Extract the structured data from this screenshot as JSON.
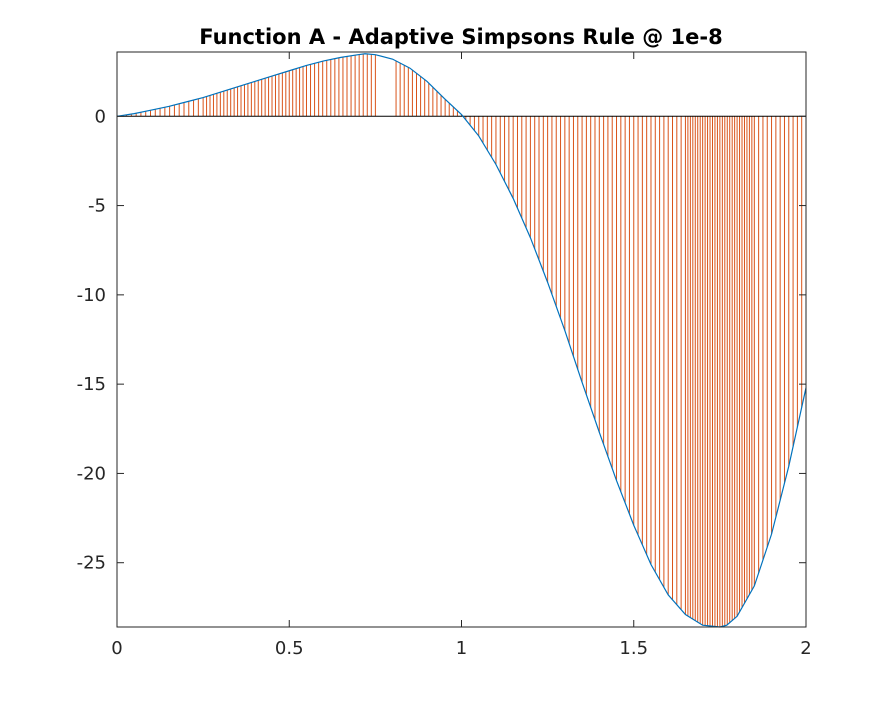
{
  "chart_data": {
    "type": "line",
    "title": "Function A - Adaptive Simpsons Rule @ 1e-8",
    "xlabel": "",
    "ylabel": "",
    "xlim": [
      0,
      2
    ],
    "ylim": [
      -28.6,
      3.6
    ],
    "xticks": [
      0,
      0.5,
      1,
      1.5,
      2
    ],
    "xtick_labels": [
      "0",
      "0.5",
      "1",
      "1.5",
      "2"
    ],
    "yticks": [
      -25,
      -20,
      -15,
      -10,
      -5,
      0
    ],
    "ytick_labels": [
      "-25",
      "-20",
      "-15",
      "-10",
      "-5",
      "0"
    ],
    "grid": false,
    "legend": "none",
    "series": [
      {
        "kind": "line",
        "color": "#0072BD",
        "x": [
          0,
          0.05,
          0.1,
          0.15,
          0.2,
          0.25,
          0.3,
          0.35,
          0.4,
          0.45,
          0.5,
          0.55,
          0.6,
          0.65,
          0.7,
          0.72,
          0.75,
          0.8,
          0.85,
          0.9,
          0.95,
          1.0,
          1.05,
          1.1,
          1.15,
          1.2,
          1.25,
          1.3,
          1.35,
          1.4,
          1.45,
          1.5,
          1.55,
          1.6,
          1.65,
          1.7,
          1.75,
          1.77,
          1.8,
          1.85,
          1.9,
          1.95,
          2.0
        ],
        "y": [
          0.0,
          0.15,
          0.35,
          0.55,
          0.8,
          1.05,
          1.35,
          1.65,
          1.95,
          2.25,
          2.55,
          2.85,
          3.1,
          3.3,
          3.45,
          3.5,
          3.45,
          3.2,
          2.7,
          1.95,
          1.0,
          0.1,
          -1.1,
          -2.7,
          -4.6,
          -6.8,
          -9.3,
          -12.0,
          -14.9,
          -17.7,
          -20.4,
          -22.9,
          -25.1,
          -26.8,
          -27.9,
          -28.5,
          -28.6,
          -28.5,
          -28.0,
          -26.3,
          -23.4,
          -19.6,
          -15.2
        ]
      },
      {
        "kind": "stem",
        "color": "#D95319",
        "baseline": 0,
        "segments": [
          {
            "x0": 0,
            "x1": 0.25,
            "count": 18
          },
          {
            "x0": 0.25,
            "x1": 0.55,
            "count": 30
          },
          {
            "x0": 0.55,
            "x1": 0.75,
            "count": 17
          },
          {
            "x0": 0.75,
            "x1": 0.81,
            "count": 1
          },
          {
            "x0": 0.81,
            "x1": 1.0,
            "count": 16
          },
          {
            "x0": 1.0,
            "x1": 1.2,
            "count": 16
          },
          {
            "x0": 1.2,
            "x1": 1.65,
            "count": 36
          },
          {
            "x0": 1.65,
            "x1": 1.85,
            "count": 28
          },
          {
            "x0": 1.85,
            "x1": 2.0,
            "count": 12
          }
        ]
      }
    ]
  },
  "colors": {
    "axes": "#262626",
    "background": "#ffffff",
    "series_line": "#0072BD",
    "series_stem": "#D95319"
  }
}
